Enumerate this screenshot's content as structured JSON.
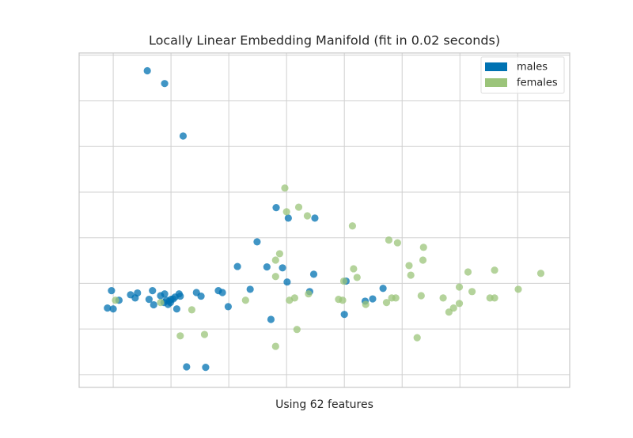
{
  "chart_data": {
    "type": "scatter",
    "title": "Locally Linear Embedding Manifold (fit in 0.02 seconds)",
    "xlabel": "Using 62 features",
    "xlim": [
      -0.59,
      7.9
    ],
    "ylim": [
      -0.28,
      7.05
    ],
    "xticks": [
      0,
      1,
      2,
      3,
      4,
      5,
      6,
      7
    ],
    "yticks": [
      0,
      1,
      2,
      3,
      4,
      5,
      6,
      7
    ],
    "grid": true,
    "legend": "upper right",
    "series": [
      {
        "name": "males",
        "color": "#0072b2",
        "x": [
          0.59,
          0.89,
          1.21,
          2.82,
          3.03,
          3.49,
          2.49,
          2.15,
          2.66,
          2.93,
          3.47,
          3.01,
          -0.03,
          0.3,
          0.42,
          0.1,
          0.38,
          0.68,
          0.62,
          0.7,
          0.82,
          0.89,
          0.88,
          0.95,
          0.97,
          1.0,
          1.04,
          1.07,
          1.14,
          1.16,
          1.1,
          -0.1,
          0.0,
          1.44,
          1.52,
          1.82,
          1.89,
          2.37,
          1.99,
          2.73,
          3.4,
          4.03,
          4.0,
          4.36,
          4.49,
          4.67,
          1.27,
          1.6,
          0.92,
          0.99
        ],
        "values": [
          6.66,
          6.38,
          5.23,
          3.66,
          3.43,
          3.43,
          2.91,
          2.37,
          2.36,
          2.34,
          2.2,
          2.03,
          1.84,
          1.75,
          1.79,
          1.63,
          1.68,
          1.84,
          1.65,
          1.53,
          1.73,
          1.77,
          1.58,
          1.54,
          1.61,
          1.65,
          1.66,
          1.7,
          1.77,
          1.72,
          1.44,
          1.46,
          1.44,
          1.8,
          1.72,
          1.84,
          1.8,
          1.87,
          1.49,
          1.21,
          1.82,
          2.05,
          1.32,
          1.61,
          1.66,
          1.89,
          0.17,
          0.16,
          1.63,
          1.58
        ]
      },
      {
        "name": "females",
        "color": "#9bc47a",
        "x": [
          2.97,
          3.0,
          3.21,
          3.36,
          4.14,
          4.77,
          4.92,
          5.37,
          2.88,
          2.81,
          5.12,
          5.36,
          4.16,
          5.15,
          4.22,
          2.81,
          3.99,
          6.14,
          6.6,
          7.4,
          5.99,
          6.21,
          7.01,
          3.14,
          3.05,
          3.38,
          2.29,
          0.04,
          0.82,
          1.36,
          3.9,
          3.97,
          4.37,
          4.73,
          4.82,
          4.89,
          5.33,
          5.71,
          6.52,
          6.6,
          5.89,
          5.99,
          5.81,
          3.18,
          1.16,
          1.58,
          2.81,
          5.26
        ],
        "values": [
          4.09,
          3.57,
          3.67,
          3.48,
          3.26,
          2.95,
          2.89,
          2.79,
          2.65,
          2.51,
          2.39,
          2.51,
          2.32,
          2.18,
          2.13,
          2.15,
          2.05,
          2.25,
          2.29,
          2.22,
          1.92,
          1.82,
          1.87,
          1.68,
          1.63,
          1.77,
          1.63,
          1.63,
          1.58,
          1.42,
          1.65,
          1.63,
          1.54,
          1.58,
          1.68,
          1.68,
          1.73,
          1.68,
          1.68,
          1.68,
          1.46,
          1.56,
          1.37,
          0.99,
          0.85,
          0.88,
          0.62,
          0.81
        ]
      }
    ]
  }
}
